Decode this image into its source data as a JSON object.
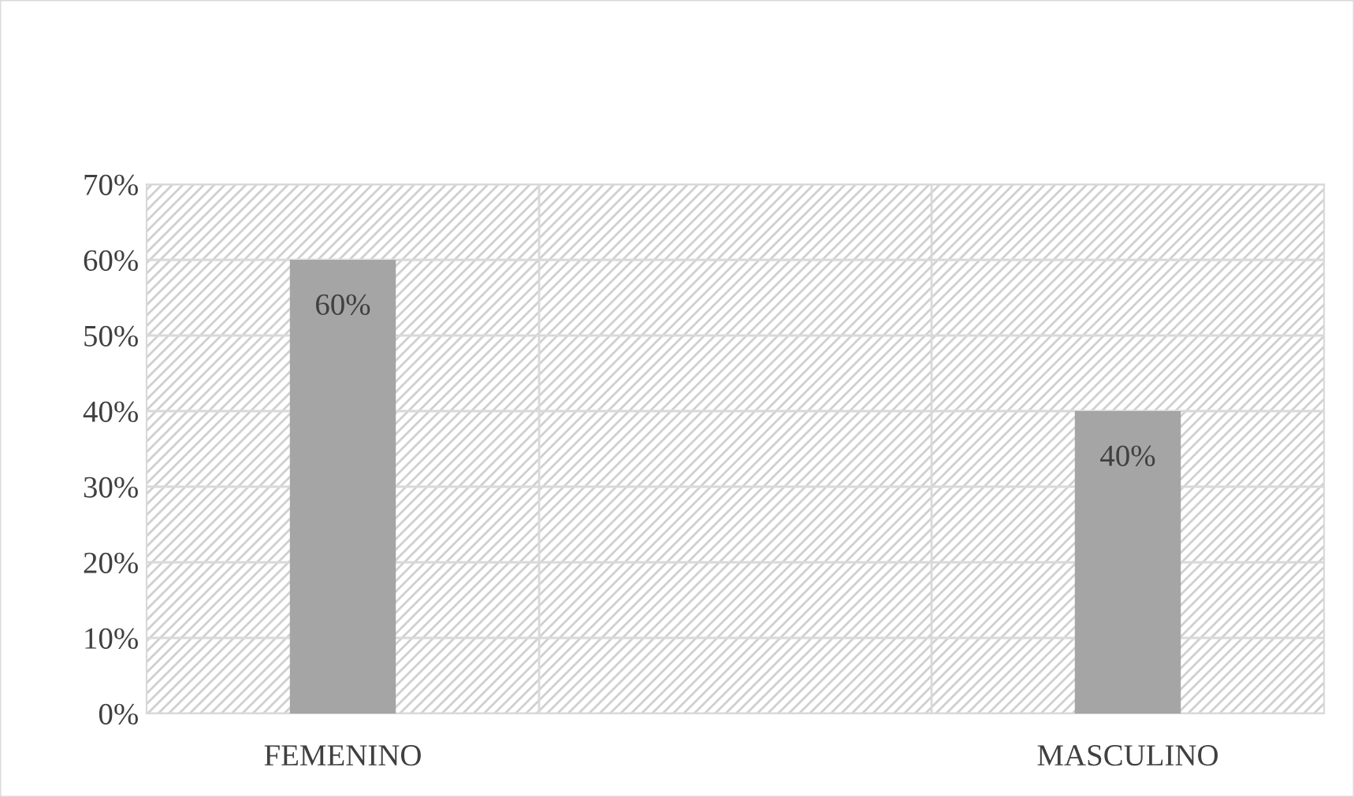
{
  "chart_data": {
    "type": "bar",
    "categories": [
      "FEMENINO",
      null,
      "MASCULINO"
    ],
    "values": [
      60,
      null,
      40
    ],
    "value_labels": [
      "60%",
      null,
      "40%"
    ],
    "color": "#a5a5a5",
    "ylim": [
      0,
      70
    ],
    "yticks": [
      {
        "value": 0,
        "label": "0%"
      },
      {
        "value": 10,
        "label": "10%"
      },
      {
        "value": 20,
        "label": "20%"
      },
      {
        "value": 30,
        "label": "30%"
      },
      {
        "value": 40,
        "label": "40%"
      },
      {
        "value": 50,
        "label": "50%"
      },
      {
        "value": 60,
        "label": "60%"
      },
      {
        "value": 70,
        "label": "70%"
      }
    ],
    "grid": true
  }
}
